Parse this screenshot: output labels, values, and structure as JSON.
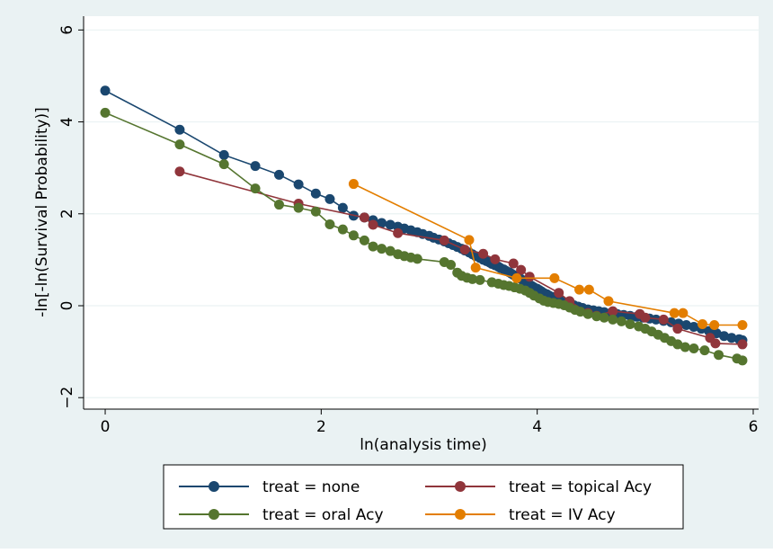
{
  "chart_data": {
    "type": "line",
    "xlabel": "ln(analysis time)",
    "ylabel": "-ln[-ln(Survival Probability)]",
    "xlim": [
      -0.2,
      6.05
    ],
    "ylim": [
      -2.25,
      6.3
    ],
    "xticks": [
      0,
      2,
      4,
      6
    ],
    "yticks": [
      -2,
      0,
      2,
      4,
      6
    ],
    "x_tick_labels": [
      "0",
      "2",
      "4",
      "6"
    ],
    "y_tick_labels": [
      "−2",
      "0",
      "2",
      "4",
      "6"
    ],
    "grid": true,
    "legend_position": "bottom",
    "series": [
      {
        "name": "treat = none",
        "color": "#1a476f",
        "points": [
          [
            0.0,
            4.68
          ],
          [
            0.69,
            3.83
          ],
          [
            1.1,
            3.28
          ],
          [
            1.39,
            3.04
          ],
          [
            1.61,
            2.85
          ],
          [
            1.79,
            2.64
          ],
          [
            1.95,
            2.44
          ],
          [
            2.08,
            2.32
          ],
          [
            2.2,
            2.13
          ],
          [
            2.3,
            1.96
          ],
          [
            2.4,
            1.92
          ],
          [
            2.48,
            1.86
          ],
          [
            2.56,
            1.8
          ],
          [
            2.64,
            1.76
          ],
          [
            2.71,
            1.72
          ],
          [
            2.77,
            1.68
          ],
          [
            2.83,
            1.64
          ],
          [
            2.89,
            1.6
          ],
          [
            2.94,
            1.56
          ],
          [
            3.0,
            1.52
          ],
          [
            3.04,
            1.48
          ],
          [
            3.09,
            1.44
          ],
          [
            3.14,
            1.4
          ],
          [
            3.18,
            1.36
          ],
          [
            3.22,
            1.32
          ],
          [
            3.26,
            1.28
          ],
          [
            3.3,
            1.24
          ],
          [
            3.33,
            1.2
          ],
          [
            3.37,
            1.16
          ],
          [
            3.4,
            1.12
          ],
          [
            3.43,
            1.08
          ],
          [
            3.47,
            1.04
          ],
          [
            3.5,
            1.0
          ],
          [
            3.53,
            0.97
          ],
          [
            3.56,
            0.94
          ],
          [
            3.58,
            0.91
          ],
          [
            3.61,
            0.88
          ],
          [
            3.64,
            0.85
          ],
          [
            3.66,
            0.82
          ],
          [
            3.69,
            0.79
          ],
          [
            3.71,
            0.76
          ],
          [
            3.74,
            0.73
          ],
          [
            3.76,
            0.7
          ],
          [
            3.78,
            0.67
          ],
          [
            3.81,
            0.64
          ],
          [
            3.83,
            0.61
          ],
          [
            3.85,
            0.58
          ],
          [
            3.87,
            0.55
          ],
          [
            3.89,
            0.52
          ],
          [
            3.91,
            0.49
          ],
          [
            3.93,
            0.46
          ],
          [
            3.95,
            0.43
          ],
          [
            3.97,
            0.4
          ],
          [
            4.0,
            0.37
          ],
          [
            4.02,
            0.34
          ],
          [
            4.04,
            0.31
          ],
          [
            4.06,
            0.28
          ],
          [
            4.09,
            0.25
          ],
          [
            4.11,
            0.22
          ],
          [
            4.14,
            0.19
          ],
          [
            4.17,
            0.16
          ],
          [
            4.2,
            0.13
          ],
          [
            4.23,
            0.1
          ],
          [
            4.26,
            0.07
          ],
          [
            4.3,
            0.04
          ],
          [
            4.34,
            0.01
          ],
          [
            4.38,
            -0.02
          ],
          [
            4.42,
            -0.05
          ],
          [
            4.47,
            -0.08
          ],
          [
            4.52,
            -0.1
          ],
          [
            4.57,
            -0.12
          ],
          [
            4.62,
            -0.14
          ],
          [
            4.68,
            -0.16
          ],
          [
            4.74,
            -0.18
          ],
          [
            4.8,
            -0.2
          ],
          [
            4.86,
            -0.22
          ],
          [
            4.92,
            -0.24
          ],
          [
            4.98,
            -0.26
          ],
          [
            5.04,
            -0.28
          ],
          [
            5.1,
            -0.3
          ],
          [
            5.17,
            -0.33
          ],
          [
            5.24,
            -0.36
          ],
          [
            5.31,
            -0.39
          ],
          [
            5.38,
            -0.42
          ],
          [
            5.45,
            -0.46
          ],
          [
            5.52,
            -0.5
          ],
          [
            5.59,
            -0.55
          ],
          [
            5.66,
            -0.6
          ],
          [
            5.73,
            -0.66
          ],
          [
            5.8,
            -0.7
          ],
          [
            5.87,
            -0.73
          ],
          [
            5.9,
            -0.75
          ]
        ]
      },
      {
        "name": "treat = topical Acy",
        "color": "#90353b",
        "points": [
          [
            0.69,
            2.92
          ],
          [
            1.79,
            2.22
          ],
          [
            2.4,
            1.92
          ],
          [
            2.48,
            1.76
          ],
          [
            2.71,
            1.58
          ],
          [
            3.14,
            1.42
          ],
          [
            3.33,
            1.22
          ],
          [
            3.5,
            1.13
          ],
          [
            3.61,
            1.01
          ],
          [
            3.78,
            0.92
          ],
          [
            3.85,
            0.78
          ],
          [
            3.93,
            0.63
          ],
          [
            4.2,
            0.28
          ],
          [
            4.3,
            0.1
          ],
          [
            4.47,
            -0.16
          ],
          [
            4.55,
            -0.22
          ],
          [
            4.7,
            -0.12
          ],
          [
            4.95,
            -0.18
          ],
          [
            5.0,
            -0.26
          ],
          [
            5.17,
            -0.3
          ],
          [
            5.3,
            -0.5
          ],
          [
            5.6,
            -0.7
          ],
          [
            5.65,
            -0.82
          ],
          [
            5.9,
            -0.84
          ]
        ]
      },
      {
        "name": "treat = oral Acy",
        "color": "#55752f",
        "points": [
          [
            0.0,
            4.2
          ],
          [
            0.69,
            3.51
          ],
          [
            1.1,
            3.08
          ],
          [
            1.39,
            2.55
          ],
          [
            1.61,
            2.2
          ],
          [
            1.79,
            2.13
          ],
          [
            1.95,
            2.05
          ],
          [
            2.08,
            1.77
          ],
          [
            2.2,
            1.66
          ],
          [
            2.3,
            1.53
          ],
          [
            2.4,
            1.42
          ],
          [
            2.48,
            1.29
          ],
          [
            2.56,
            1.24
          ],
          [
            2.64,
            1.19
          ],
          [
            2.71,
            1.12
          ],
          [
            2.77,
            1.08
          ],
          [
            2.83,
            1.05
          ],
          [
            2.89,
            1.02
          ],
          [
            3.14,
            0.95
          ],
          [
            3.2,
            0.89
          ],
          [
            3.26,
            0.72
          ],
          [
            3.3,
            0.65
          ],
          [
            3.35,
            0.61
          ],
          [
            3.4,
            0.58
          ],
          [
            3.47,
            0.56
          ],
          [
            3.58,
            0.51
          ],
          [
            3.64,
            0.48
          ],
          [
            3.69,
            0.45
          ],
          [
            3.74,
            0.43
          ],
          [
            3.79,
            0.4
          ],
          [
            3.84,
            0.37
          ],
          [
            3.89,
            0.33
          ],
          [
            3.93,
            0.28
          ],
          [
            3.97,
            0.22
          ],
          [
            4.02,
            0.16
          ],
          [
            4.06,
            0.11
          ],
          [
            4.1,
            0.08
          ],
          [
            4.15,
            0.06
          ],
          [
            4.2,
            0.04
          ],
          [
            4.25,
            0.01
          ],
          [
            4.3,
            -0.04
          ],
          [
            4.35,
            -0.09
          ],
          [
            4.4,
            -0.13
          ],
          [
            4.47,
            -0.18
          ],
          [
            4.55,
            -0.23
          ],
          [
            4.62,
            -0.26
          ],
          [
            4.7,
            -0.3
          ],
          [
            4.78,
            -0.34
          ],
          [
            4.86,
            -0.4
          ],
          [
            4.94,
            -0.45
          ],
          [
            5.0,
            -0.5
          ],
          [
            5.06,
            -0.56
          ],
          [
            5.12,
            -0.63
          ],
          [
            5.18,
            -0.7
          ],
          [
            5.24,
            -0.77
          ],
          [
            5.3,
            -0.84
          ],
          [
            5.37,
            -0.9
          ],
          [
            5.45,
            -0.93
          ],
          [
            5.55,
            -0.97
          ],
          [
            5.68,
            -1.07
          ],
          [
            5.85,
            -1.15
          ],
          [
            5.9,
            -1.19
          ]
        ]
      },
      {
        "name": "treat = IV Acy",
        "color": "#e37e00",
        "points": [
          [
            2.3,
            2.65
          ],
          [
            3.37,
            1.43
          ],
          [
            3.43,
            0.83
          ],
          [
            3.81,
            0.6
          ],
          [
            4.16,
            0.6
          ],
          [
            4.39,
            0.35
          ],
          [
            4.48,
            0.35
          ],
          [
            4.66,
            0.1
          ],
          [
            5.27,
            -0.16
          ],
          [
            5.35,
            -0.16
          ],
          [
            5.53,
            -0.4
          ],
          [
            5.64,
            -0.42
          ],
          [
            5.9,
            -0.42
          ]
        ]
      }
    ]
  }
}
